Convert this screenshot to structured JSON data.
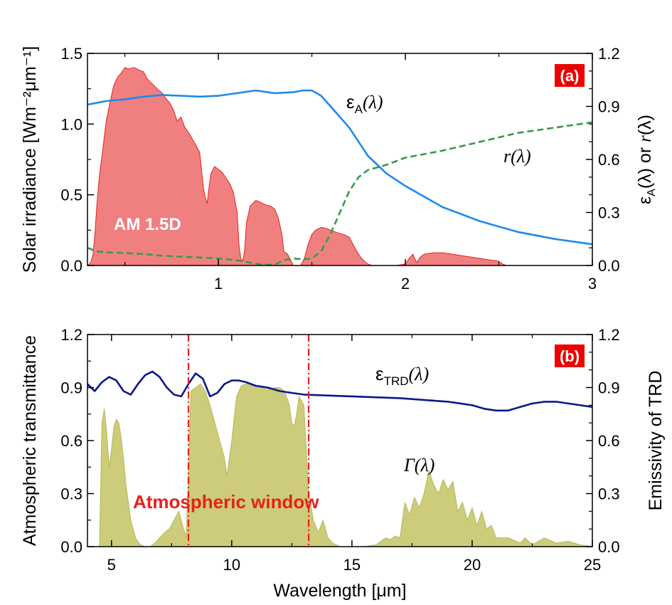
{
  "chart_data": [
    {
      "id": "a",
      "type": "area",
      "panel_label": "(a)",
      "xlabel": "",
      "ylabel_left": "Solar irradiance [Wm⁻²μm⁻¹]",
      "ylabel_right": "εA(λ) or r(λ)",
      "ylabel_right_parts": {
        "eps": "ε",
        "sub": "A",
        "paren1": "(λ) or ",
        "r": "r",
        "paren2": "(λ)"
      },
      "xlim": [
        0.3,
        3.0
      ],
      "ylim_left": [
        0,
        1.5
      ],
      "ylim_right": [
        0,
        1.2
      ],
      "xticks": [
        1,
        2,
        3
      ],
      "xtick_labels": [
        "1",
        "2",
        "3"
      ],
      "yticks_left": [
        0.0,
        0.5,
        1.0,
        1.5
      ],
      "ytick_labels_left": [
        "0.0",
        "0.5",
        "1.0",
        "1.5"
      ],
      "yticks_right": [
        0.0,
        0.3,
        0.6,
        0.9,
        1.2
      ],
      "ytick_labels_right": [
        "0.0",
        "0.3",
        "0.6",
        "0.9",
        "1.2"
      ],
      "annotations": {
        "area_label": "AM 1.5D"
      },
      "series": [
        {
          "name": "AM 1.5D",
          "kind": "area",
          "axis": "left",
          "color": "#f08080",
          "edge": "#e8201a",
          "x": [
            0.3,
            0.31,
            0.32,
            0.33,
            0.34,
            0.35,
            0.36,
            0.37,
            0.38,
            0.4,
            0.42,
            0.44,
            0.46,
            0.48,
            0.5,
            0.52,
            0.55,
            0.58,
            0.6,
            0.62,
            0.65,
            0.68,
            0.7,
            0.72,
            0.74,
            0.76,
            0.78,
            0.8,
            0.82,
            0.85,
            0.88,
            0.9,
            0.92,
            0.93,
            0.94,
            0.95,
            0.96,
            0.98,
            1.0,
            1.02,
            1.04,
            1.06,
            1.08,
            1.1,
            1.11,
            1.12,
            1.13,
            1.14,
            1.15,
            1.17,
            1.2,
            1.22,
            1.25,
            1.28,
            1.3,
            1.32,
            1.34,
            1.35,
            1.37,
            1.39,
            1.4,
            1.42,
            1.44,
            1.46,
            1.48,
            1.5,
            1.52,
            1.55,
            1.58,
            1.6,
            1.62,
            1.64,
            1.67,
            1.7,
            1.72,
            1.74,
            1.76,
            1.78,
            1.8,
            1.82,
            1.84,
            1.86,
            1.9,
            1.95,
            2.0,
            2.02,
            2.04,
            2.06,
            2.08,
            2.1,
            2.15,
            2.2,
            2.25,
            2.3,
            2.35,
            2.4,
            2.45,
            2.5,
            2.52,
            2.54,
            2.6,
            2.8,
            3.0
          ],
          "y": [
            0.0,
            0.01,
            0.03,
            0.08,
            0.22,
            0.42,
            0.58,
            0.7,
            0.8,
            1.02,
            1.15,
            1.27,
            1.33,
            1.36,
            1.4,
            1.39,
            1.4,
            1.38,
            1.37,
            1.32,
            1.28,
            1.24,
            1.22,
            1.18,
            1.15,
            1.1,
            1.02,
            1.05,
            0.98,
            0.92,
            0.85,
            0.8,
            0.55,
            0.48,
            0.44,
            0.55,
            0.65,
            0.7,
            0.68,
            0.66,
            0.62,
            0.58,
            0.52,
            0.38,
            0.15,
            0.05,
            0.03,
            0.1,
            0.3,
            0.42,
            0.46,
            0.45,
            0.43,
            0.42,
            0.4,
            0.34,
            0.22,
            0.1,
            0.08,
            0.03,
            0.0,
            0.0,
            0.0,
            0.05,
            0.15,
            0.22,
            0.25,
            0.27,
            0.26,
            0.25,
            0.24,
            0.23,
            0.22,
            0.2,
            0.15,
            0.1,
            0.06,
            0.03,
            0.01,
            0.0,
            0.0,
            0.0,
            0.0,
            0.0,
            0.01,
            0.05,
            0.08,
            0.02,
            0.06,
            0.08,
            0.09,
            0.09,
            0.08,
            0.07,
            0.06,
            0.05,
            0.04,
            0.03,
            0.01,
            0.0,
            0.0,
            0.0,
            0.0
          ]
        },
        {
          "name": "εA(λ)",
          "label_parts": {
            "eps": "ε",
            "sub": "A",
            "paren": "(λ)"
          },
          "kind": "line",
          "axis": "right",
          "color": "#1f8ae8",
          "x": [
            0.3,
            0.4,
            0.5,
            0.6,
            0.7,
            0.8,
            0.9,
            1.0,
            1.1,
            1.2,
            1.3,
            1.4,
            1.45,
            1.5,
            1.55,
            1.6,
            1.7,
            1.8,
            1.9,
            2.0,
            2.2,
            2.4,
            2.6,
            2.8,
            3.0
          ],
          "y": [
            0.91,
            0.93,
            0.94,
            0.955,
            0.965,
            0.96,
            0.955,
            0.96,
            0.975,
            0.99,
            0.975,
            0.98,
            0.99,
            0.99,
            0.96,
            0.9,
            0.78,
            0.62,
            0.52,
            0.45,
            0.33,
            0.25,
            0.19,
            0.15,
            0.12
          ]
        },
        {
          "name": "r(λ)",
          "kind": "line",
          "axis": "right",
          "color": "#3a9a4a",
          "dashed": true,
          "x": [
            0.3,
            0.35,
            0.4,
            0.5,
            0.6,
            0.7,
            0.8,
            0.9,
            1.0,
            1.1,
            1.2,
            1.25,
            1.3,
            1.35,
            1.4,
            1.45,
            1.5,
            1.55,
            1.6,
            1.65,
            1.7,
            1.75,
            1.8,
            1.9,
            2.0,
            2.2,
            2.4,
            2.6,
            2.8,
            3.0
          ],
          "y": [
            0.1,
            0.08,
            0.075,
            0.07,
            0.065,
            0.055,
            0.05,
            0.045,
            0.04,
            0.03,
            0.01,
            0.005,
            0.005,
            0.03,
            0.04,
            0.035,
            0.04,
            0.08,
            0.18,
            0.3,
            0.42,
            0.5,
            0.54,
            0.57,
            0.61,
            0.65,
            0.7,
            0.75,
            0.78,
            0.81
          ]
        }
      ]
    },
    {
      "id": "b",
      "type": "area",
      "panel_label": "(b)",
      "xlabel": "Wavelength [μm]",
      "ylabel_left": "Atmospheric transmittance",
      "ylabel_right": "Emissivity of TRD",
      "xlim": [
        4.0,
        25.0
      ],
      "ylim_left": [
        0,
        1.2
      ],
      "ylim_right": [
        0,
        1.2
      ],
      "xticks": [
        5,
        10,
        15,
        20,
        25
      ],
      "xtick_labels": [
        "5",
        "10",
        "15",
        "20",
        "25"
      ],
      "yticks_left": [
        0.0,
        0.3,
        0.6,
        0.9,
        1.2
      ],
      "ytick_labels_left": [
        "0.0",
        "0.3",
        "0.6",
        "0.9",
        "1.2"
      ],
      "yticks_right": [
        0.0,
        0.3,
        0.6,
        0.9,
        1.2
      ],
      "ytick_labels_right": [
        "0.0",
        "0.3",
        "0.6",
        "0.9",
        "1.2"
      ],
      "window": {
        "label": "Atmospheric window",
        "x_start": 8.2,
        "x_end": 13.2,
        "color": "#e8201a"
      },
      "series": [
        {
          "name": "Γ(λ)",
          "label_parts": {
            "sym": "Γ",
            "paren": "(λ)"
          },
          "kind": "area",
          "axis": "left",
          "color": "#cccc7a",
          "edge": "#b8b860",
          "x": [
            4.5,
            4.6,
            4.7,
            4.8,
            4.9,
            5.0,
            5.1,
            5.2,
            5.3,
            5.4,
            5.5,
            5.6,
            5.8,
            6.0,
            6.2,
            6.4,
            6.6,
            6.8,
            7.0,
            7.2,
            7.4,
            7.6,
            7.8,
            8.0,
            8.1,
            8.2,
            8.3,
            8.5,
            8.7,
            8.9,
            9.1,
            9.3,
            9.5,
            9.7,
            9.8,
            10.0,
            10.2,
            10.4,
            10.6,
            10.8,
            11.0,
            11.2,
            11.4,
            11.6,
            11.8,
            12.0,
            12.2,
            12.4,
            12.5,
            12.6,
            12.7,
            12.8,
            13.0,
            13.2,
            13.4,
            13.6,
            13.8,
            14.0,
            14.2,
            14.5,
            15.0,
            15.5,
            16.0,
            16.2,
            16.4,
            16.6,
            16.8,
            17.0,
            17.2,
            17.4,
            17.6,
            17.8,
            18.0,
            18.2,
            18.4,
            18.6,
            18.8,
            19.0,
            19.2,
            19.4,
            19.6,
            19.8,
            20.0,
            20.2,
            20.4,
            20.6,
            20.8,
            21.0,
            21.5,
            22.0,
            22.2,
            22.5,
            23.0,
            23.5,
            24.0,
            24.5,
            25.0
          ],
          "y": [
            0.0,
            0.7,
            0.78,
            0.65,
            0.45,
            0.55,
            0.68,
            0.72,
            0.7,
            0.62,
            0.5,
            0.35,
            0.15,
            0.05,
            0.01,
            0.0,
            0.0,
            0.02,
            0.05,
            0.08,
            0.1,
            0.15,
            0.2,
            0.1,
            0.05,
            0.4,
            0.88,
            0.9,
            0.92,
            0.88,
            0.8,
            0.7,
            0.6,
            0.5,
            0.4,
            0.6,
            0.85,
            0.91,
            0.92,
            0.92,
            0.91,
            0.9,
            0.9,
            0.89,
            0.9,
            0.9,
            0.88,
            0.8,
            0.7,
            0.68,
            0.75,
            0.85,
            0.8,
            0.3,
            0.15,
            0.08,
            0.15,
            0.05,
            0.02,
            0.0,
            0.0,
            0.0,
            0.01,
            0.03,
            0.05,
            0.04,
            0.06,
            0.05,
            0.25,
            0.18,
            0.28,
            0.22,
            0.3,
            0.43,
            0.35,
            0.3,
            0.38,
            0.32,
            0.37,
            0.2,
            0.25,
            0.15,
            0.22,
            0.12,
            0.2,
            0.1,
            0.12,
            0.05,
            0.05,
            0.02,
            0.05,
            0.01,
            0.05,
            0.02,
            0.03,
            0.01,
            0.0
          ]
        },
        {
          "name": "εTRD(λ)",
          "label_parts": {
            "eps": "ε",
            "sub": "TRD",
            "paren": "(λ)"
          },
          "kind": "line",
          "axis": "right",
          "color": "#0b1a8c",
          "x": [
            4.0,
            4.3,
            4.6,
            4.9,
            5.2,
            5.5,
            5.8,
            6.1,
            6.4,
            6.7,
            7.0,
            7.3,
            7.6,
            7.9,
            8.2,
            8.5,
            8.8,
            9.1,
            9.4,
            9.7,
            10.0,
            10.3,
            10.6,
            11.0,
            11.5,
            12.0,
            12.5,
            13.0,
            14.0,
            15.0,
            16.0,
            17.0,
            18.0,
            19.0,
            20.0,
            20.5,
            21.0,
            21.5,
            22.0,
            22.5,
            23.0,
            23.5,
            24.0,
            24.5,
            25.0
          ],
          "y": [
            0.92,
            0.88,
            0.93,
            0.96,
            0.94,
            0.88,
            0.86,
            0.92,
            0.97,
            0.99,
            0.96,
            0.9,
            0.86,
            0.85,
            0.92,
            0.98,
            0.95,
            0.85,
            0.87,
            0.92,
            0.94,
            0.94,
            0.93,
            0.91,
            0.9,
            0.88,
            0.87,
            0.86,
            0.855,
            0.85,
            0.845,
            0.84,
            0.83,
            0.82,
            0.8,
            0.78,
            0.77,
            0.77,
            0.79,
            0.81,
            0.82,
            0.82,
            0.81,
            0.8,
            0.79
          ]
        }
      ]
    }
  ]
}
